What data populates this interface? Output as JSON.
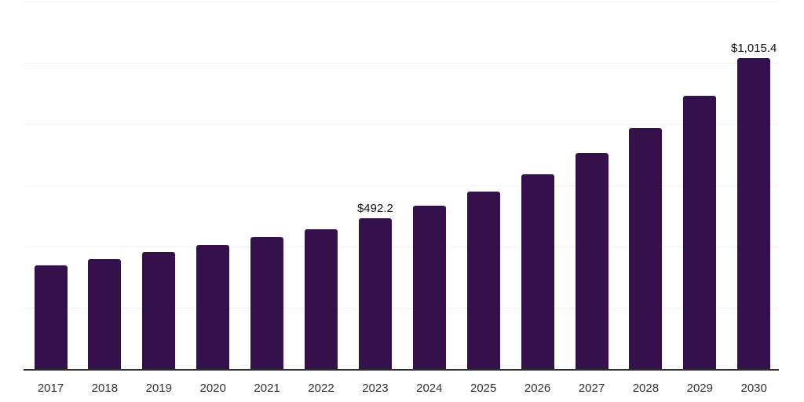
{
  "page": {
    "background_color": "#ffffff"
  },
  "chart_data": {
    "type": "bar",
    "title": "",
    "xlabel": "",
    "ylabel": "",
    "categories": [
      "2017",
      "2018",
      "2019",
      "2020",
      "2021",
      "2022",
      "2023",
      "2024",
      "2025",
      "2026",
      "2027",
      "2028",
      "2029",
      "2030"
    ],
    "values": [
      338,
      359,
      383,
      405,
      432,
      457,
      492.2,
      534,
      579,
      636,
      704,
      788,
      893,
      1015.4
    ],
    "data_labels": [
      null,
      null,
      null,
      null,
      null,
      null,
      "$492.2",
      null,
      null,
      null,
      null,
      null,
      null,
      "$1,015.4"
    ],
    "ylim": [
      0,
      1200
    ],
    "grid_step": 200,
    "grid": true,
    "legend": false,
    "y_tick_labels_visible": false,
    "bar_color": "#35114c",
    "gridline_color": "#f2f2f2",
    "axis_color": "#2f2f2f",
    "tick_label_color": "#333333",
    "data_label_color": "#111111"
  }
}
